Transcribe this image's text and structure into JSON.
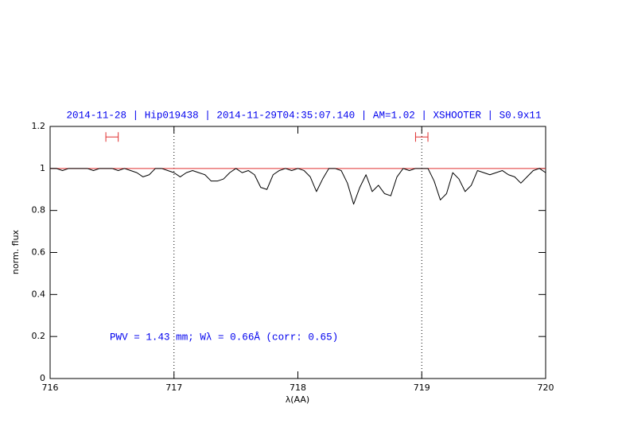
{
  "chart_data": {
    "type": "line",
    "title": "2014-11-28 | Hip019438 | 2014-11-29T04:35:07.140 | AM=1.02 | XSHOOTER | S0.9x11",
    "xlabel": "λ(AA)",
    "ylabel": "norm. flux",
    "annotation": "PWV = 1.43 mm; Wλ = 0.66Å (corr: 0.65)",
    "xlim": [
      716,
      720
    ],
    "xticks": [
      716,
      717,
      718,
      719,
      720
    ],
    "ylim": [
      0,
      1.2
    ],
    "yticks": [
      0,
      0.2,
      0.4,
      0.6,
      0.8,
      1,
      1.2
    ],
    "reference_y": 1,
    "reference_color": "#e03030",
    "vlines": [
      717,
      719
    ],
    "ranges": [
      {
        "x": [
          716.45,
          716.55
        ],
        "y": 1.15
      },
      {
        "x": [
          718.95,
          719.05
        ],
        "y": 1.15
      }
    ],
    "x": [
      716.0,
      716.05,
      716.1,
      716.15,
      716.2,
      716.25,
      716.3,
      716.35,
      716.4,
      716.45,
      716.5,
      716.55,
      716.6,
      716.65,
      716.7,
      716.75,
      716.8,
      716.85,
      716.9,
      716.95,
      717.0,
      717.05,
      717.1,
      717.15,
      717.2,
      717.25,
      717.3,
      717.35,
      717.4,
      717.45,
      717.5,
      717.55,
      717.6,
      717.65,
      717.7,
      717.75,
      717.8,
      717.85,
      717.9,
      717.95,
      718.0,
      718.05,
      718.1,
      718.15,
      718.2,
      718.25,
      718.3,
      718.35,
      718.4,
      718.45,
      718.5,
      718.55,
      718.6,
      718.65,
      718.7,
      718.75,
      718.8,
      718.85,
      718.9,
      718.95,
      719.0,
      719.05,
      719.1,
      719.15,
      719.2,
      719.25,
      719.3,
      719.35,
      719.4,
      719.45,
      719.5,
      719.55,
      719.6,
      719.65,
      719.7,
      719.75,
      719.8,
      719.85,
      719.9,
      719.95,
      720.0
    ],
    "series": [
      {
        "color": "#000000",
        "values": [
          1.0,
          1.0,
          0.99,
          1.0,
          1.0,
          1.0,
          1.0,
          0.99,
          1.0,
          1.0,
          1.0,
          0.99,
          1.0,
          0.99,
          0.98,
          0.96,
          0.97,
          1.0,
          1.0,
          0.99,
          0.98,
          0.96,
          0.98,
          0.99,
          0.98,
          0.97,
          0.94,
          0.94,
          0.95,
          0.98,
          1.0,
          0.98,
          0.99,
          0.97,
          0.91,
          0.9,
          0.97,
          0.99,
          1.0,
          0.99,
          1.0,
          0.99,
          0.96,
          0.89,
          0.95,
          1.0,
          1.0,
          0.99,
          0.93,
          0.83,
          0.91,
          0.97,
          0.89,
          0.92,
          0.88,
          0.87,
          0.96,
          1.0,
          0.99,
          1.0,
          1.0,
          1.0,
          0.94,
          0.85,
          0.88,
          0.98,
          0.95,
          0.89,
          0.92,
          0.99,
          0.98,
          0.97,
          0.98,
          0.99,
          0.97,
          0.96,
          0.93,
          0.96,
          0.99,
          1.0,
          0.98
        ]
      }
    ],
    "title_color": "#0000ee"
  }
}
